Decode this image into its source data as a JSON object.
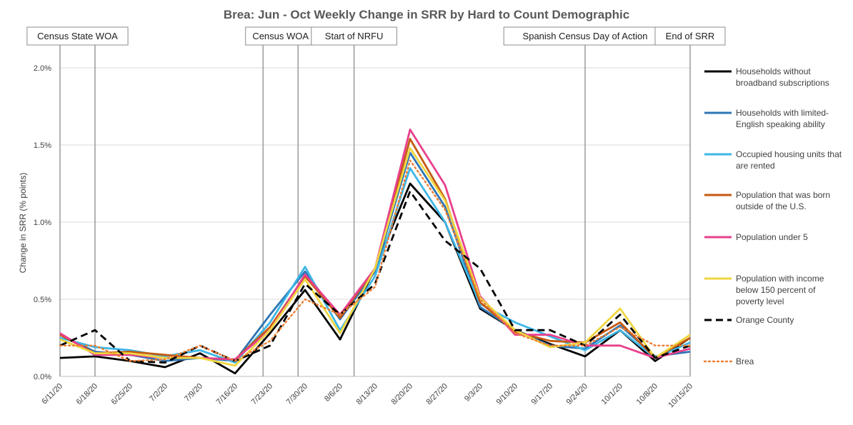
{
  "chart_data": {
    "type": "line",
    "title": "Brea: Jun - Oct Weekly Change in SRR by Hard to Count Demographic",
    "ylabel": "Change in SRR (% points)",
    "xlabel": "",
    "ylim": [
      0,
      2.0
    ],
    "yticks": [
      0.0,
      0.5,
      1.0,
      1.5,
      2.0
    ],
    "ytick_labels": [
      "0.0%",
      "0.5%",
      "1.0%",
      "1.5%",
      "2.0%"
    ],
    "grid": "horizontal",
    "legend_position": "right",
    "categories": [
      "6/11/20",
      "6/18/20",
      "6/25/20",
      "7/2/20",
      "7/9/20",
      "7/16/20",
      "7/23/20",
      "7/30/20",
      "8/6/20",
      "8/13/20",
      "8/20/20",
      "8/27/20",
      "9/3/20",
      "9/10/20",
      "9/17/20",
      "9/24/20",
      "10/1/20",
      "10/8/20",
      "10/15/20"
    ],
    "events": [
      {
        "label": "Census State WOA",
        "lines": [
          1.0,
          2.0
        ]
      },
      {
        "label": "Census WOA",
        "lines": [
          6.8,
          7.8
        ]
      },
      {
        "label": "Start of NRFU",
        "lines": [
          9.4
        ]
      },
      {
        "label": "Spanish Census Day of Action",
        "lines": [
          16.0
        ]
      },
      {
        "label": "End of SRR",
        "lines": [
          19.0
        ]
      }
    ],
    "series": [
      {
        "name": "Households without broadband subscriptions",
        "legend_lines": [
          "Households without",
          "broadband subscriptions"
        ],
        "color": "#000000",
        "dash": "solid",
        "values": [
          0.12,
          0.13,
          0.1,
          0.06,
          0.15,
          0.02,
          0.28,
          0.56,
          0.24,
          0.7,
          1.25,
          1.0,
          0.44,
          0.3,
          0.21,
          0.13,
          0.3,
          0.1,
          0.25
        ]
      },
      {
        "name": "Households with limited-English speaking ability",
        "legend_lines": [
          "Households with limited-",
          "English speaking ability"
        ],
        "color": "#2E75B6",
        "dash": "solid",
        "values": [
          0.27,
          0.16,
          0.14,
          0.1,
          0.12,
          0.1,
          0.4,
          0.68,
          0.37,
          0.68,
          1.45,
          1.1,
          0.45,
          0.3,
          0.2,
          0.18,
          0.33,
          0.13,
          0.16
        ]
      },
      {
        "name": "Occupied housing units that are rented",
        "legend_lines": [
          "Occupied housing units that",
          "are rented"
        ],
        "color": "#3DB6E6",
        "dash": "solid",
        "values": [
          0.25,
          0.19,
          0.17,
          0.13,
          0.17,
          0.09,
          0.35,
          0.71,
          0.3,
          0.65,
          1.35,
          1.0,
          0.47,
          0.35,
          0.26,
          0.17,
          0.3,
          0.12,
          0.22
        ]
      },
      {
        "name": "Population that was born outside of the U.S.",
        "legend_lines": [
          "Population that was born",
          "outside of the U.S."
        ],
        "color": "#C55A11",
        "dash": "solid",
        "values": [
          0.27,
          0.15,
          0.16,
          0.14,
          0.12,
          0.11,
          0.32,
          0.65,
          0.38,
          0.7,
          1.54,
          1.15,
          0.48,
          0.29,
          0.23,
          0.22,
          0.35,
          0.12,
          0.25
        ]
      },
      {
        "name": "Population under 5",
        "legend_lines": [
          "Population under 5"
        ],
        "color": "#E8408C",
        "dash": "solid",
        "values": [
          0.28,
          0.14,
          0.14,
          0.12,
          0.12,
          0.11,
          0.3,
          0.66,
          0.4,
          0.7,
          1.6,
          1.24,
          0.52,
          0.27,
          0.27,
          0.2,
          0.2,
          0.12,
          0.18
        ]
      },
      {
        "name": "Population with income below 150 percent of poverty level",
        "legend_lines": [
          "Population with income",
          "below 150 percent of",
          "poverty level"
        ],
        "color": "#F0D640",
        "dash": "solid",
        "values": [
          0.24,
          0.15,
          0.15,
          0.12,
          0.12,
          0.07,
          0.3,
          0.63,
          0.28,
          0.7,
          1.48,
          1.14,
          0.51,
          0.3,
          0.19,
          0.22,
          0.44,
          0.12,
          0.27
        ]
      },
      {
        "name": "Orange County",
        "legend_lines": [
          "Orange County"
        ],
        "color": "#000000",
        "dash": "dashed",
        "values": [
          0.2,
          0.3,
          0.1,
          0.09,
          0.2,
          0.1,
          0.2,
          0.6,
          0.4,
          0.6,
          1.2,
          0.88,
          0.7,
          0.3,
          0.3,
          0.2,
          0.4,
          0.12,
          0.2
        ]
      },
      {
        "name": "Brea",
        "legend_lines": [
          "Brea"
        ],
        "color": "#ED7D31",
        "dash": "dotted",
        "values": [
          0.2,
          0.2,
          0.1,
          0.11,
          0.2,
          0.1,
          0.23,
          0.5,
          0.4,
          0.58,
          1.4,
          1.08,
          0.5,
          0.28,
          0.2,
          0.2,
          0.32,
          0.2,
          0.2
        ]
      }
    ]
  }
}
